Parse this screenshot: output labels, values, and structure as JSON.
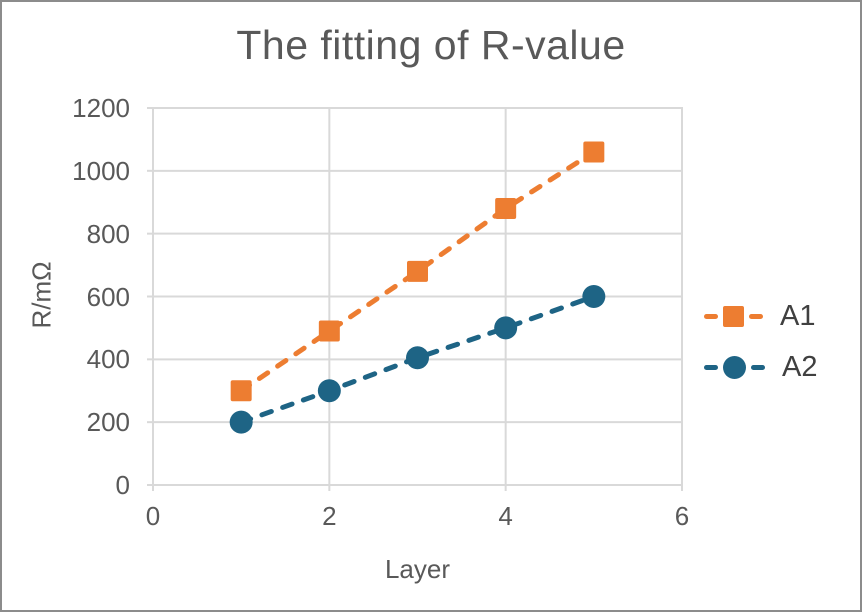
{
  "chart_data": {
    "type": "line",
    "title": "The fitting of R-value",
    "xlabel": "Layer",
    "ylabel": "R/mΩ",
    "xlim": [
      0,
      6
    ],
    "ylim": [
      0,
      1200
    ],
    "xticks": [
      0,
      2,
      4,
      6
    ],
    "yticks": [
      0,
      200,
      400,
      600,
      800,
      1000,
      1200
    ],
    "grid": true,
    "legend_position": "right",
    "x": [
      1,
      2,
      3,
      4,
      5
    ],
    "series": [
      {
        "name": "A1",
        "color": "#ED7D31",
        "marker": "square",
        "line_style": "dashed",
        "values": [
          300,
          490,
          680,
          880,
          1060
        ]
      },
      {
        "name": "A2",
        "color": "#1E6485",
        "marker": "circle",
        "line_style": "dashed",
        "values": [
          200,
          300,
          405,
          500,
          600
        ]
      }
    ]
  }
}
